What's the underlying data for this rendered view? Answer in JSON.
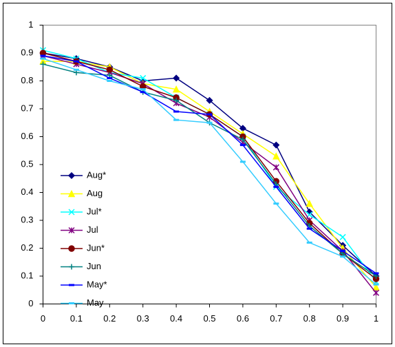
{
  "chart_data": {
    "type": "line",
    "x": [
      0,
      0.1,
      0.2,
      0.3,
      0.4,
      0.5,
      0.6,
      0.7,
      0.8,
      0.9,
      1
    ],
    "series": [
      {
        "name": "Aug*",
        "color": "#000080",
        "marker": "diamond",
        "values": [
          0.9,
          0.88,
          0.85,
          0.8,
          0.81,
          0.73,
          0.63,
          0.57,
          0.33,
          0.21,
          0.1
        ]
      },
      {
        "name": "Aug",
        "color": "#ffff00",
        "marker": "triangle",
        "values": [
          0.87,
          0.87,
          0.85,
          0.79,
          0.77,
          0.69,
          0.61,
          0.53,
          0.36,
          0.2,
          0.06
        ]
      },
      {
        "name": "Jul*",
        "color": "#00ffff",
        "marker": "x",
        "values": [
          0.91,
          0.88,
          0.83,
          0.81,
          0.74,
          0.68,
          0.6,
          0.42,
          0.32,
          0.24,
          0.08
        ]
      },
      {
        "name": "Jul",
        "color": "#800080",
        "marker": "star",
        "values": [
          0.89,
          0.86,
          0.83,
          0.79,
          0.72,
          0.67,
          0.58,
          0.49,
          0.3,
          0.19,
          0.04
        ]
      },
      {
        "name": "Jun*",
        "color": "#800000",
        "marker": "circle",
        "values": [
          0.9,
          0.87,
          0.84,
          0.78,
          0.74,
          0.68,
          0.6,
          0.44,
          0.29,
          0.18,
          0.09
        ]
      },
      {
        "name": "Jun",
        "color": "#008080",
        "marker": "plus",
        "values": [
          0.86,
          0.83,
          0.82,
          0.76,
          0.73,
          0.65,
          0.59,
          0.43,
          0.28,
          0.18,
          0.1
        ]
      },
      {
        "name": "May*",
        "color": "#0000ff",
        "marker": "dash",
        "values": [
          0.89,
          0.87,
          0.81,
          0.76,
          0.69,
          0.68,
          0.57,
          0.42,
          0.27,
          0.19,
          0.11
        ]
      },
      {
        "name": "May",
        "color": "#33ccff",
        "marker": "dash",
        "values": [
          0.88,
          0.84,
          0.8,
          0.77,
          0.66,
          0.65,
          0.51,
          0.36,
          0.22,
          0.17,
          0.07
        ]
      }
    ],
    "xlim": [
      0,
      1
    ],
    "xticks": [
      0,
      0.1,
      0.2,
      0.3,
      0.4,
      0.5,
      0.6,
      0.7,
      0.8,
      0.9,
      1
    ],
    "ylim": [
      0,
      1
    ],
    "yticks": [
      0,
      0.1,
      0.2,
      0.3,
      0.4,
      0.5,
      0.6,
      0.7,
      0.8,
      0.9,
      1
    ],
    "grid": false,
    "legend": "left"
  }
}
